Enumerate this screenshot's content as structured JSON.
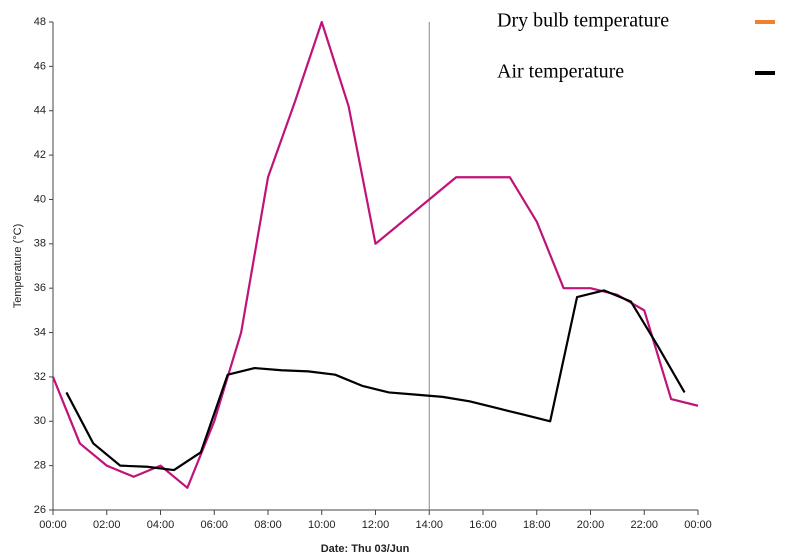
{
  "chart_data": {
    "type": "line",
    "x_label": "Date: Thu 03/Jun",
    "y_label": "Temperature (°C)",
    "xlim": [
      0,
      24
    ],
    "xticks": [
      {
        "value": 0,
        "label": "00:00"
      },
      {
        "value": 2,
        "label": "02:00"
      },
      {
        "value": 4,
        "label": "04:00"
      },
      {
        "value": 6,
        "label": "06:00"
      },
      {
        "value": 8,
        "label": "08:00"
      },
      {
        "value": 10,
        "label": "10:00"
      },
      {
        "value": 12,
        "label": "12:00"
      },
      {
        "value": 14,
        "label": "14:00"
      },
      {
        "value": 16,
        "label": "16:00"
      },
      {
        "value": 18,
        "label": "18:00"
      },
      {
        "value": 20,
        "label": "20:00"
      },
      {
        "value": 22,
        "label": "22:00"
      },
      {
        "value": 24,
        "label": "00:00"
      }
    ],
    "ylim": [
      26,
      48
    ],
    "yticks": [
      26,
      28,
      30,
      32,
      34,
      36,
      38,
      40,
      42,
      44,
      46,
      48
    ],
    "cursor_x": 14,
    "series": [
      {
        "name": "Dry bulb temperature",
        "color": "#c0137a",
        "legend_color": "#f08030",
        "x": [
          0,
          1,
          2,
          3,
          4,
          5,
          6,
          7,
          8,
          9,
          10,
          11,
          12,
          15,
          17,
          18,
          19,
          20,
          21,
          22,
          23,
          24
        ],
        "values": [
          32,
          29,
          28,
          27.5,
          28,
          27,
          30,
          34,
          41,
          44.4,
          48,
          44.2,
          38,
          41,
          41,
          39,
          36,
          36,
          35.7,
          35,
          31,
          30.7
        ]
      },
      {
        "name": "Air temperature",
        "color": "#000000",
        "legend_color": "#000000",
        "x": [
          0.5,
          1.5,
          2.5,
          3.5,
          4.5,
          5.5,
          6.5,
          7.5,
          8.5,
          9.5,
          10.5,
          11.5,
          12.5,
          13.5,
          14.5,
          15.5,
          16.5,
          17.5,
          18.5,
          19.5,
          20.5,
          21.5,
          22.5,
          23.5
        ],
        "values": [
          31.3,
          29,
          28,
          27.95,
          27.8,
          28.6,
          32.1,
          32.4,
          32.3,
          32.25,
          32.1,
          31.6,
          31.3,
          31.2,
          31.1,
          30.9,
          30.6,
          30.3,
          30,
          35.6,
          35.9,
          35.4,
          33.4,
          31.3
        ]
      }
    ]
  }
}
